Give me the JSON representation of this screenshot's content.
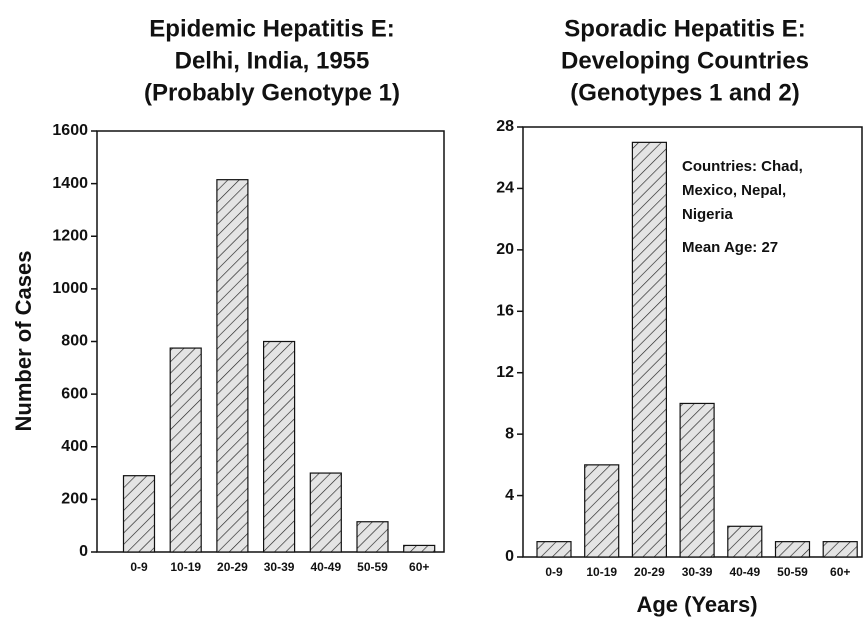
{
  "chart_data": [
    {
      "type": "bar",
      "title": [
        "Epidemic Hepatitis E:",
        "Delhi, India, 1955",
        "(Probably Genotype 1)"
      ],
      "ylabel": "Number of Cases",
      "categories": [
        "0-9",
        "10-19",
        "20-29",
        "30-39",
        "40-49",
        "50-59",
        "60+"
      ],
      "values": [
        290,
        775,
        1415,
        800,
        300,
        115,
        25
      ],
      "ylim": [
        0,
        1600
      ],
      "yticks": [
        0,
        200,
        400,
        600,
        800,
        1000,
        1200,
        1400,
        1600
      ]
    },
    {
      "type": "bar",
      "title": [
        "Sporadic Hepatitis E:",
        "Developing Countries",
        "(Genotypes 1 and 2)"
      ],
      "xlabel": "Age (Years)",
      "annotations": [
        "Countries: Chad,",
        "Mexico, Nepal,",
        "Nigeria",
        "Mean Age: 27"
      ],
      "categories": [
        "0-9",
        "10-19",
        "20-29",
        "30-39",
        "40-49",
        "50-59",
        "60+"
      ],
      "values": [
        1,
        6,
        27,
        10,
        2,
        1,
        1
      ],
      "ylim": [
        0,
        28
      ],
      "yticks": [
        0,
        4,
        8,
        12,
        16,
        20,
        24,
        28
      ]
    }
  ]
}
